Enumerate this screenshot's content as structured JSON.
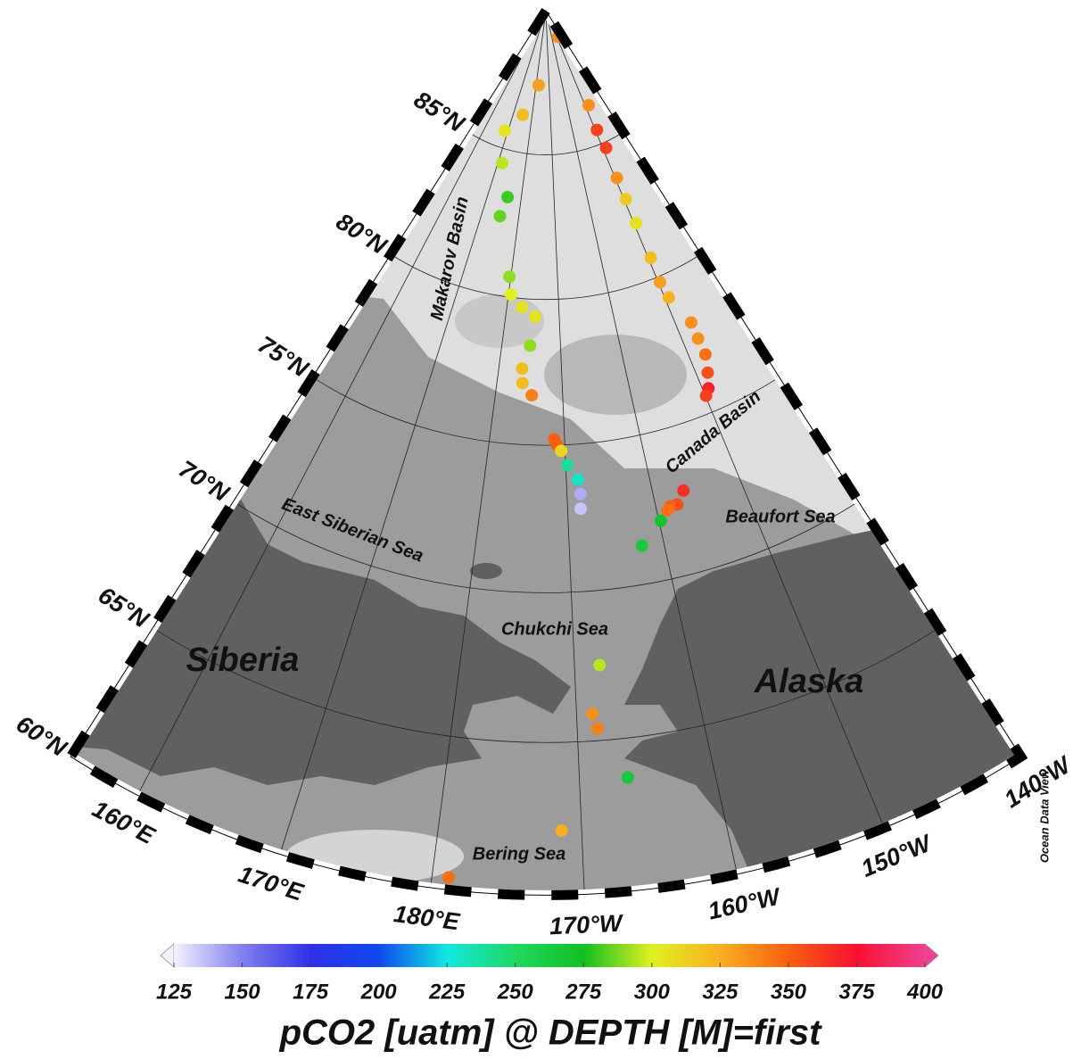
{
  "map": {
    "latlim": [
      60,
      90
    ],
    "lonlim": [
      155,
      -140
    ],
    "lat_labels": [
      {
        "value": 60,
        "label": "60°N"
      },
      {
        "value": 65,
        "label": "65°N"
      },
      {
        "value": 70,
        "label": "70°N"
      },
      {
        "value": 75,
        "label": "75°N"
      },
      {
        "value": 80,
        "label": "80°N"
      },
      {
        "value": 85,
        "label": "85°N"
      }
    ],
    "lon_labels": [
      {
        "value": 160,
        "label": "160°E"
      },
      {
        "value": 170,
        "label": "170°E"
      },
      {
        "value": 180,
        "label": "180°E"
      },
      {
        "value": -170,
        "label": "170°W"
      },
      {
        "value": -160,
        "label": "160°W"
      },
      {
        "value": -150,
        "label": "150°W"
      },
      {
        "value": -140,
        "label": "140°W"
      }
    ],
    "regions": [
      "Makarov Basin",
      "Canada Basin",
      "East Siberian Sea",
      "Beaufort Sea",
      "Chukchi Sea",
      "Siberia",
      "Alaska",
      "Bering Sea"
    ],
    "credit": "Ocean Data View",
    "stations": [
      {
        "lat": 89.0,
        "lon": -147.5,
        "pco2": 335
      },
      {
        "lat": 87.4,
        "lon": -178,
        "pco2": 330
      },
      {
        "lat": 86.3,
        "lon": 175,
        "pco2": 320
      },
      {
        "lat": 85.6,
        "lon": 168.6,
        "pco2": 305
      },
      {
        "lat": 84.5,
        "lon": 171.5,
        "pco2": 295
      },
      {
        "lat": 83.4,
        "lon": 175.9,
        "pco2": 280
      },
      {
        "lat": 82.7,
        "lon": 174.9,
        "pco2": 285
      },
      {
        "lat": 80.7,
        "lon": 179.7,
        "pco2": 290
      },
      {
        "lat": 80.1,
        "lon": -179.5,
        "pco2": 300
      },
      {
        "lat": 79.7,
        "lon": -177.1,
        "pco2": 305
      },
      {
        "lat": 79.4,
        "lon": -174.5,
        "pco2": 305
      },
      {
        "lat": 78.4,
        "lon": -175.2,
        "pco2": 290
      },
      {
        "lat": 77.6,
        "lon": -176.3,
        "pco2": 320
      },
      {
        "lat": 77.1,
        "lon": -176.1,
        "pco2": 320
      },
      {
        "lat": 76.7,
        "lon": -174.6,
        "pco2": 340
      },
      {
        "lat": 75.2,
        "lon": -171.4,
        "pco2": 350
      },
      {
        "lat": 75.0,
        "lon": -171.0,
        "pco2": 350
      },
      {
        "lat": 74.8,
        "lon": -170.5,
        "pco2": 310
      },
      {
        "lat": 74.3,
        "lon": -169.8,
        "pco2": 240
      },
      {
        "lat": 73.8,
        "lon": -168.6,
        "pco2": 230
      },
      {
        "lat": 73.3,
        "lon": -168.4,
        "pco2": 140
      },
      {
        "lat": 72.8,
        "lon": -168.5,
        "pco2": 135
      },
      {
        "lat": 86.4,
        "lon": -148.1,
        "pco2": 335
      },
      {
        "lat": 85.5,
        "lon": -149.3,
        "pco2": 360
      },
      {
        "lat": 84.8,
        "lon": -148.8,
        "pco2": 360
      },
      {
        "lat": 83.7,
        "lon": -149.5,
        "pco2": 335
      },
      {
        "lat": 82.9,
        "lon": -149.5,
        "pco2": 315
      },
      {
        "lat": 82.0,
        "lon": -149.5,
        "pco2": 305
      },
      {
        "lat": 80.7,
        "lon": -149.5,
        "pco2": 320
      },
      {
        "lat": 79.8,
        "lon": -149.7,
        "pco2": 330
      },
      {
        "lat": 79.2,
        "lon": -149.3,
        "pco2": 325
      },
      {
        "lat": 78.1,
        "lon": -147.5,
        "pco2": 335
      },
      {
        "lat": 77.5,
        "lon": -147.6,
        "pco2": 335
      },
      {
        "lat": 76.9,
        "lon": -147.6,
        "pco2": 345
      },
      {
        "lat": 76.3,
        "lon": -148.4,
        "pco2": 355
      },
      {
        "lat": 75.8,
        "lon": -149.2,
        "pco2": 370
      },
      {
        "lat": 75.6,
        "lon": -149.9,
        "pco2": 360
      },
      {
        "lat": 72.8,
        "lon": -156.5,
        "pco2": 365
      },
      {
        "lat": 72.4,
        "lon": -157.6,
        "pco2": 355
      },
      {
        "lat": 72.4,
        "lon": -158.4,
        "pco2": 350
      },
      {
        "lat": 72.3,
        "lon": -158.8,
        "pco2": 345
      },
      {
        "lat": 72.0,
        "lon": -159.8,
        "pco2": 270
      },
      {
        "lat": 71.3,
        "lon": -162.3,
        "pco2": 265
      },
      {
        "lat": 67.5,
        "lon": -167.8,
        "pco2": 295
      },
      {
        "lat": 65.9,
        "lon": -168.7,
        "pco2": 335
      },
      {
        "lat": 65.4,
        "lon": -168.4,
        "pco2": 340
      },
      {
        "lat": 63.7,
        "lon": -166.4,
        "pco2": 265
      },
      {
        "lat": 62.1,
        "lon": -171.4,
        "pco2": 325
      },
      {
        "lat": 60.4,
        "lon": -178.9,
        "pco2": 345
      }
    ]
  },
  "colorbar": {
    "title": "pCO2 [uatm] @ DEPTH [M]=first",
    "range": [
      125,
      400
    ],
    "ticks": [
      125,
      150,
      175,
      200,
      225,
      250,
      275,
      300,
      325,
      350,
      375,
      400
    ],
    "colormap": [
      "#f4f2ff",
      "#8080ee",
      "#3030e8",
      "#1048f0",
      "#10e8e0",
      "#20d860",
      "#10c020",
      "#e0f020",
      "#f8b020",
      "#f86010",
      "#f81030",
      "#f04090"
    ]
  }
}
